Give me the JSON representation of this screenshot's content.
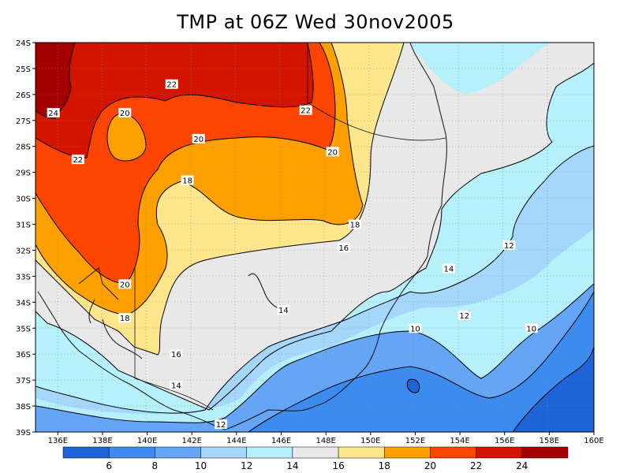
{
  "title": "TMP at 06Z Wed 30nov2005",
  "map": {
    "lon_range": [
      135,
      160
    ],
    "lat_range": [
      -39,
      -24
    ],
    "x_ticks": [
      "136E",
      "138E",
      "140E",
      "142E",
      "144E",
      "146E",
      "148E",
      "150E",
      "152E",
      "154E",
      "156E",
      "158E",
      "160E"
    ],
    "y_ticks": [
      "24S",
      "25S",
      "26S",
      "27S",
      "28S",
      "29S",
      "30S",
      "31S",
      "32S",
      "33S",
      "34S",
      "35S",
      "36S",
      "37S",
      "38S",
      "39S"
    ],
    "contour_labels": [
      {
        "text": "24",
        "lon": 135.8,
        "lat": -26.7
      },
      {
        "text": "22",
        "lon": 141.1,
        "lat": -25.6
      },
      {
        "text": "22",
        "lon": 147.1,
        "lat": -26.6
      },
      {
        "text": "22",
        "lon": 136.9,
        "lat": -28.5
      },
      {
        "text": "20",
        "lon": 139.0,
        "lat": -26.7
      },
      {
        "text": "20",
        "lon": 142.3,
        "lat": -27.7
      },
      {
        "text": "20",
        "lon": 148.3,
        "lat": -28.2
      },
      {
        "text": "20",
        "lon": 139.0,
        "lat": -33.3
      },
      {
        "text": "18",
        "lon": 141.8,
        "lat": -29.3
      },
      {
        "text": "18",
        "lon": 149.3,
        "lat": -31.0
      },
      {
        "text": "18",
        "lon": 139.0,
        "lat": -34.6
      },
      {
        "text": "16",
        "lon": 148.8,
        "lat": -31.9
      },
      {
        "text": "16",
        "lon": 141.3,
        "lat": -36.0
      },
      {
        "text": "14",
        "lon": 146.1,
        "lat": -34.3
      },
      {
        "text": "14",
        "lon": 153.5,
        "lat": -32.7
      },
      {
        "text": "14",
        "lon": 141.3,
        "lat": -37.2
      },
      {
        "text": "12",
        "lon": 156.2,
        "lat": -31.8
      },
      {
        "text": "12",
        "lon": 154.2,
        "lat": -34.5
      },
      {
        "text": "12",
        "lon": 143.3,
        "lat": -38.7
      },
      {
        "text": "10",
        "lon": 152.0,
        "lat": -35.0
      },
      {
        "text": "10",
        "lon": 157.2,
        "lat": -35.0
      }
    ]
  },
  "colorbar": {
    "labels": [
      "6",
      "8",
      "10",
      "12",
      "14",
      "16",
      "18",
      "20",
      "22",
      "24"
    ],
    "colors": [
      "#1f64d6",
      "#3c8cf0",
      "#64a5f5",
      "#a5d6fb",
      "#b5f0fb",
      "#e8e8e8",
      "#fee68c",
      "#fea100",
      "#fd4400",
      "#d31400",
      "#a50000"
    ]
  },
  "colors": {
    "t24": "#a50000",
    "t22": "#d31400",
    "t20": "#fd4400",
    "t18": "#fea100",
    "t16": "#fee68c",
    "t14": "#e8e8e8",
    "t12": "#b5f0fb",
    "t10": "#a5d6fb",
    "t8": "#64a5f5",
    "t6": "#3c8cf0",
    "t4": "#1f64d6"
  }
}
